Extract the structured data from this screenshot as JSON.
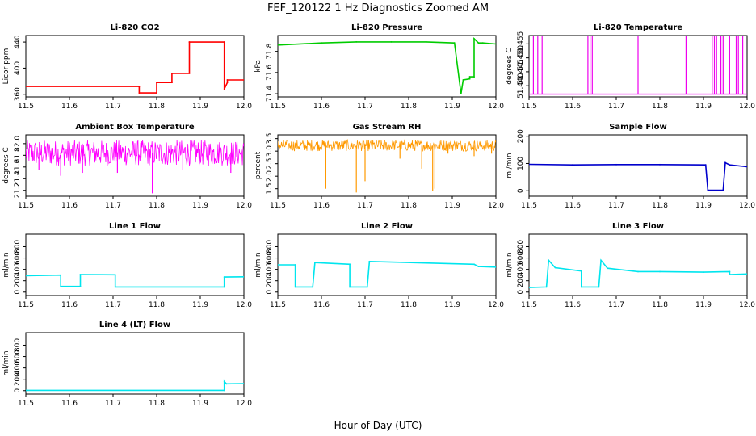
{
  "figure": {
    "title": "FEF_120122  1 Hz Diagnostics Zoomed AM",
    "xlabel": "Hour of Day (UTC)"
  },
  "chart_data": [
    {
      "type": "line",
      "title": "Li-820 CO2",
      "ylabel": "Licor ppm",
      "color": "#ff0000",
      "xlim": [
        11.5,
        12.0
      ],
      "ylim": [
        356,
        450
      ],
      "xticks": [
        "11.5",
        "11.6",
        "11.7",
        "11.8",
        "11.9",
        "12.0"
      ],
      "yticks": [
        "360",
        "400",
        "440"
      ],
      "x": [
        11.5,
        11.76,
        11.76,
        11.8,
        11.8,
        11.835,
        11.835,
        11.875,
        11.875,
        11.955,
        11.955,
        11.962,
        11.962,
        12.0
      ],
      "y": [
        372,
        372,
        362,
        362,
        378,
        378,
        392,
        392,
        440,
        440,
        368,
        378,
        382,
        382
      ]
    },
    {
      "type": "line",
      "title": "Li-820 Pressure",
      "ylabel": "kPa",
      "color": "#00cc00",
      "xlim": [
        11.5,
        12.0
      ],
      "ylim": [
        71.37,
        71.95
      ],
      "xticks": [
        "11.5",
        "11.6",
        "11.7",
        "11.8",
        "11.9",
        "12.0"
      ],
      "yticks": [
        "71.4",
        "71.6",
        "71.8"
      ],
      "x": [
        11.5,
        11.6,
        11.68,
        11.76,
        11.84,
        11.905,
        11.92,
        11.925,
        11.94,
        11.94,
        11.95,
        11.95,
        11.96,
        11.97,
        12.0
      ],
      "y": [
        71.86,
        71.88,
        71.89,
        71.89,
        71.89,
        71.88,
        71.4,
        71.53,
        71.54,
        71.56,
        71.56,
        71.92,
        71.88,
        71.88,
        71.87
      ]
    },
    {
      "type": "line",
      "title": "Li-820 Temperature",
      "ylabel": "degrees C",
      "color": "#ee00ee",
      "xlim": [
        11.5,
        12.0
      ],
      "ylim": [
        51.436,
        51.458
      ],
      "xticks": [
        "11.5",
        "11.6",
        "11.7",
        "11.8",
        "11.9",
        "12.0"
      ],
      "yticks": [
        "51.440",
        "51.445",
        "51.450",
        "51.455"
      ],
      "base": 51.437,
      "spike_top": 51.458,
      "spike_x": [
        11.51,
        11.52,
        11.53,
        11.635,
        11.64,
        11.645,
        11.75,
        11.86,
        11.92,
        11.925,
        11.93,
        11.94,
        11.945,
        11.96,
        11.975,
        11.98,
        11.99
      ]
    },
    {
      "type": "line",
      "title": "Ambient Box Temperature",
      "ylabel": "degrees C",
      "color": "#ff00ff",
      "xlim": [
        11.5,
        12.0
      ],
      "ylim": [
        21.1,
        22.15
      ],
      "xticks": [
        "11.5",
        "11.6",
        "11.7",
        "11.8",
        "11.9",
        "12.0"
      ],
      "yticks": [
        "21.2",
        "21.4",
        "21.6",
        "21.8",
        "22.0"
      ],
      "band": [
        21.62,
        22.06
      ],
      "center": 21.85,
      "spikes_x": [
        11.53,
        11.58,
        11.63,
        11.71,
        11.79,
        11.86,
        11.97
      ],
      "spikes_y": [
        21.55,
        21.45,
        21.5,
        21.5,
        21.15,
        21.55,
        21.5
      ]
    },
    {
      "type": "scatter",
      "title": "Gas Stream RH",
      "ylabel": "percent",
      "color": "#ff9900",
      "xlim": [
        11.5,
        12.0
      ],
      "ylim": [
        1.2,
        3.65
      ],
      "xticks": [
        "11.5",
        "11.6",
        "11.7",
        "11.8",
        "11.9",
        "12.0"
      ],
      "yticks": [
        "1.5",
        "2.0",
        "2.5",
        "3.0",
        "3.5"
      ],
      "band": [
        3.0,
        3.45
      ],
      "center": 3.22,
      "spikes_x": [
        11.61,
        11.68,
        11.7,
        11.78,
        11.83,
        11.855,
        11.86,
        11.89,
        11.95,
        11.99
      ],
      "spikes_y": [
        1.5,
        1.35,
        1.8,
        2.7,
        2.3,
        1.4,
        1.5,
        2.9,
        2.8,
        2.9
      ]
    },
    {
      "type": "line",
      "title": "Sample Flow",
      "ylabel": "ml/min",
      "color": "#0000cc",
      "xlim": [
        11.5,
        12.0
      ],
      "ylim": [
        -20,
        205
      ],
      "xticks": [
        "11.5",
        "11.6",
        "11.7",
        "11.8",
        "11.9",
        "12.0"
      ],
      "yticks": [
        "0",
        "100",
        "200"
      ],
      "x": [
        11.5,
        11.6,
        11.7,
        11.8,
        11.905,
        11.91,
        11.945,
        11.95,
        11.96,
        12.0
      ],
      "y": [
        97,
        95,
        96,
        96,
        95,
        2,
        2,
        103,
        95,
        88
      ]
    },
    {
      "type": "line",
      "title": "Line 1 Flow",
      "ylabel": "ml/min",
      "color": "#00e5ee",
      "xlim": [
        11.5,
        12.0
      ],
      "ylim": [
        -60,
        1020
      ],
      "xticks": [
        "11.5",
        "11.6",
        "11.7",
        "11.8",
        "11.9",
        "12.0"
      ],
      "yticks": [
        "0",
        "200",
        "400",
        "600",
        "800"
      ],
      "x": [
        11.5,
        11.58,
        11.58,
        11.625,
        11.625,
        11.705,
        11.705,
        11.955,
        11.955,
        12.0
      ],
      "y": [
        290,
        300,
        100,
        100,
        310,
        305,
        90,
        90,
        265,
        270
      ]
    },
    {
      "type": "line",
      "title": "Line 2 Flow",
      "ylabel": "ml/min",
      "color": "#00e5ee",
      "xlim": [
        11.5,
        12.0
      ],
      "ylim": [
        -60,
        1020
      ],
      "xticks": [
        "11.5",
        "11.6",
        "11.7",
        "11.8",
        "11.9",
        "12.0"
      ],
      "yticks": [
        "0",
        "200",
        "400",
        "600",
        "800"
      ],
      "x": [
        11.5,
        11.54,
        11.54,
        11.58,
        11.585,
        11.665,
        11.665,
        11.705,
        11.71,
        11.95,
        11.96,
        12.0
      ],
      "y": [
        480,
        480,
        90,
        90,
        520,
        490,
        90,
        90,
        540,
        490,
        450,
        440
      ]
    },
    {
      "type": "line",
      "title": "Line 3 Flow",
      "ylabel": "ml/min",
      "color": "#00e5ee",
      "xlim": [
        11.5,
        12.0
      ],
      "ylim": [
        -60,
        1020
      ],
      "xticks": [
        "11.5",
        "11.6",
        "11.7",
        "11.8",
        "11.9",
        "12.0"
      ],
      "yticks": [
        "0",
        "200",
        "400",
        "600",
        "800"
      ],
      "x": [
        11.5,
        11.54,
        11.545,
        11.56,
        11.62,
        11.62,
        11.66,
        11.665,
        11.68,
        11.75,
        11.8,
        11.9,
        11.96,
        11.96,
        12.0
      ],
      "y": [
        80,
        90,
        560,
        430,
        370,
        90,
        90,
        560,
        420,
        360,
        360,
        350,
        360,
        310,
        320
      ]
    },
    {
      "type": "line",
      "title": "Line 4 (LT) Flow",
      "ylabel": "ml/min",
      "color": "#00e5ee",
      "xlim": [
        11.5,
        12.0
      ],
      "ylim": [
        -60,
        1020
      ],
      "xticks": [
        "11.5",
        "11.6",
        "11.7",
        "11.8",
        "11.9",
        "12.0"
      ],
      "yticks": [
        "0",
        "200",
        "400",
        "600",
        "800"
      ],
      "x": [
        11.5,
        11.955,
        11.955,
        11.96,
        12.0
      ],
      "y": [
        5,
        5,
        160,
        120,
        125
      ]
    }
  ]
}
